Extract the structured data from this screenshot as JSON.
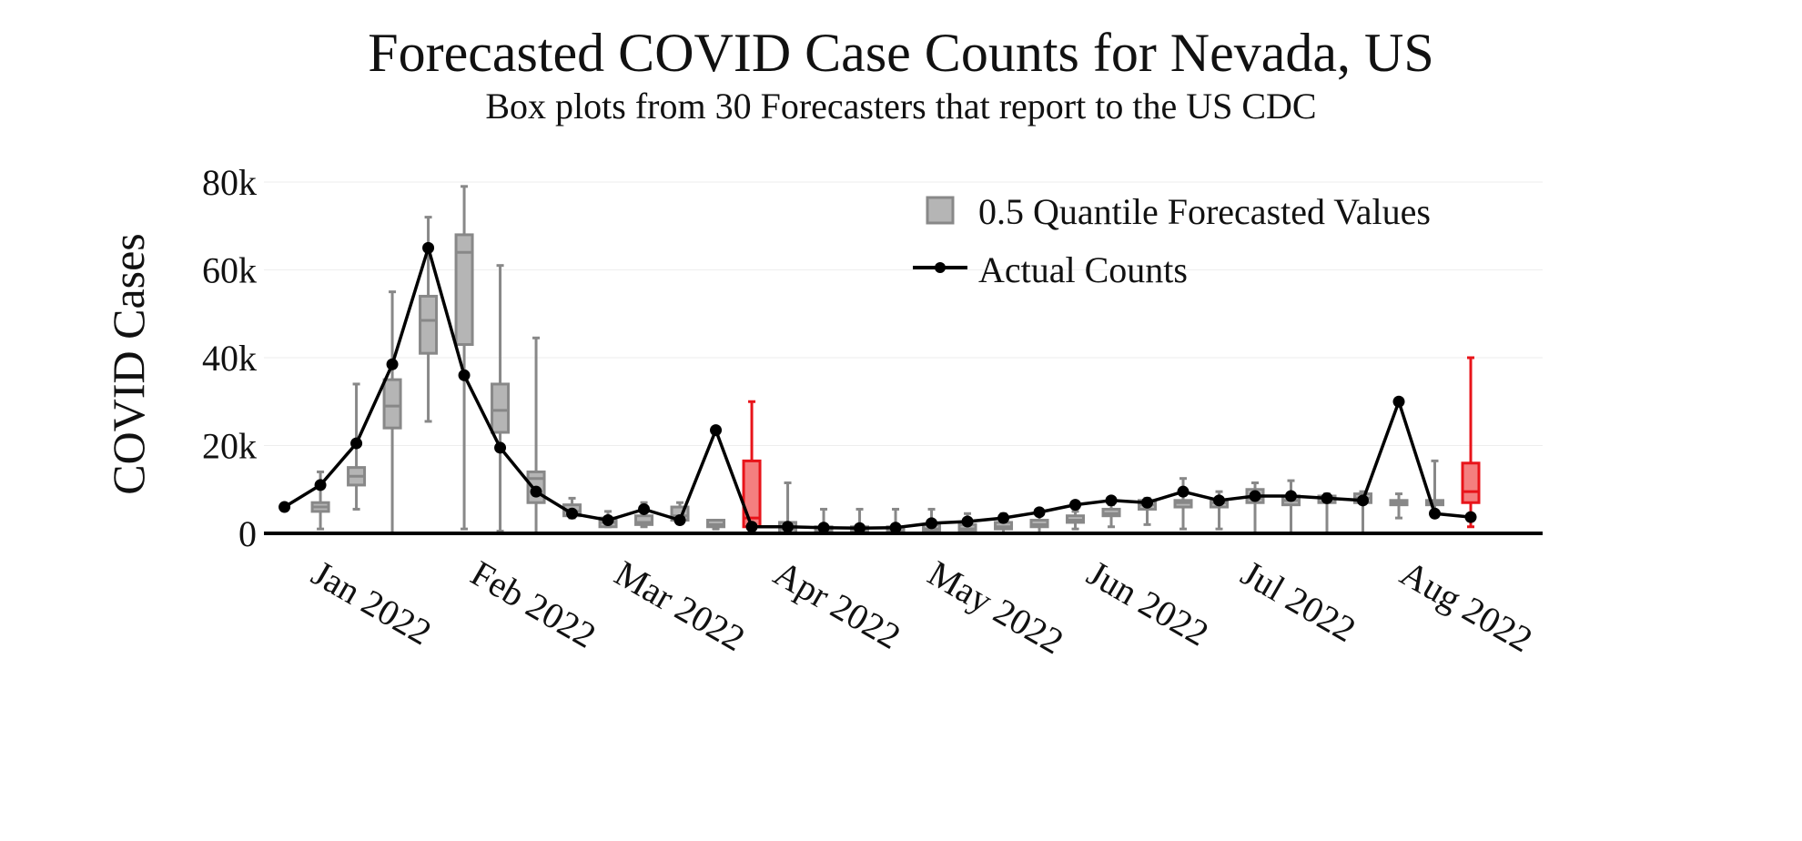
{
  "chart_data": {
    "type": "box",
    "title": "Forecasted COVID Case Counts for Nevada, US",
    "subtitle": "Box plots from 30 Forecasters that report to the US CDC",
    "ylabel": "COVID Cases",
    "xlabel": "",
    "ylim": [
      0,
      80000
    ],
    "y_ticks": [
      0,
      20000,
      40000,
      60000,
      80000
    ],
    "y_tick_labels": [
      "0",
      "20k",
      "40k",
      "60k",
      "80k"
    ],
    "x_range": [
      "2021-12-14",
      "2022-08-20"
    ],
    "x_ticks": [
      "2022-01-01",
      "2022-02-01",
      "2022-03-01",
      "2022-04-01",
      "2022-05-01",
      "2022-06-01",
      "2022-07-01",
      "2022-08-01"
    ],
    "x_tick_labels": [
      "Jan 2022",
      "Feb 2022",
      "Mar 2022",
      "Apr 2022",
      "May 2022",
      "Jun 2022",
      "Jul 2022",
      "Aug 2022"
    ],
    "legend": {
      "placement": "top-right",
      "entries": [
        "0.5 Quantile Forecasted Values",
        "Actual Counts"
      ]
    },
    "colors": {
      "box_fill": "#b5b5b5",
      "box_stroke": "#888888",
      "box_highlight_fill": "#f47f7f",
      "box_highlight_stroke": "#e8141a",
      "actual_line": "#000000",
      "axis": "#000000",
      "grid": "#eeeeee"
    },
    "grid": true,
    "box_series": {
      "name": "0.5 Quantile Forecasted Values",
      "boxes": [
        {
          "date": "2021-12-25",
          "min": 1000,
          "q1": 5000,
          "median": 6000,
          "q3": 7000,
          "max": 14000
        },
        {
          "date": "2022-01-01",
          "min": 5500,
          "q1": 11000,
          "median": 13000,
          "q3": 15000,
          "max": 34000
        },
        {
          "date": "2022-01-08",
          "min": 0,
          "q1": 24000,
          "median": 29000,
          "q3": 35000,
          "max": 55000
        },
        {
          "date": "2022-01-15",
          "min": 25500,
          "q1": 41000,
          "median": 48500,
          "q3": 54000,
          "max": 72000
        },
        {
          "date": "2022-01-22",
          "min": 1000,
          "q1": 43000,
          "median": 64000,
          "q3": 68000,
          "max": 79000
        },
        {
          "date": "2022-01-29",
          "min": 500,
          "q1": 23000,
          "median": 28000,
          "q3": 34000,
          "max": 61000
        },
        {
          "date": "2022-02-05",
          "min": 0,
          "q1": 7000,
          "median": 12500,
          "q3": 14000,
          "max": 44500
        },
        {
          "date": "2022-02-12",
          "min": 3500,
          "q1": 4000,
          "median": 5000,
          "q3": 6500,
          "max": 8000
        },
        {
          "date": "2022-02-19",
          "min": 1500,
          "q1": 1500,
          "median": 2500,
          "q3": 3500,
          "max": 5000
        },
        {
          "date": "2022-02-26",
          "min": 1500,
          "q1": 2000,
          "median": 2500,
          "q3": 4000,
          "max": 7000
        },
        {
          "date": "2022-03-05",
          "min": 2500,
          "q1": 3000,
          "median": 4000,
          "q3": 6000,
          "max": 7000
        },
        {
          "date": "2022-03-12",
          "min": 1000,
          "q1": 1500,
          "median": 2000,
          "q3": 3000,
          "max": 3000
        },
        {
          "date": "2022-03-19",
          "min": 0,
          "q1": 1500,
          "median": 3500,
          "q3": 16500,
          "max": 30000,
          "highlight": true
        },
        {
          "date": "2022-03-26",
          "min": 0,
          "q1": 0,
          "median": 1000,
          "q3": 2500,
          "max": 11500
        },
        {
          "date": "2022-04-02",
          "min": 0,
          "q1": 0,
          "median": 500,
          "q3": 1500,
          "max": 5500
        },
        {
          "date": "2022-04-09",
          "min": 0,
          "q1": 0,
          "median": 500,
          "q3": 1500,
          "max": 5500
        },
        {
          "date": "2022-04-16",
          "min": 0,
          "q1": 0,
          "median": 500,
          "q3": 1500,
          "max": 5500
        },
        {
          "date": "2022-04-23",
          "min": 0,
          "q1": 500,
          "median": 1000,
          "q3": 2000,
          "max": 5500
        },
        {
          "date": "2022-04-30",
          "min": 0,
          "q1": 500,
          "median": 1000,
          "q3": 2000,
          "max": 4500
        },
        {
          "date": "2022-05-07",
          "min": 0,
          "q1": 1000,
          "median": 1500,
          "q3": 2500,
          "max": 4500
        },
        {
          "date": "2022-05-14",
          "min": 0,
          "q1": 1500,
          "median": 2000,
          "q3": 3000,
          "max": 4500
        },
        {
          "date": "2022-05-21",
          "min": 1000,
          "q1": 2500,
          "median": 3000,
          "q3": 4000,
          "max": 5000
        },
        {
          "date": "2022-05-28",
          "min": 1500,
          "q1": 4000,
          "median": 4500,
          "q3": 5500,
          "max": 6500
        },
        {
          "date": "2022-06-04",
          "min": 2000,
          "q1": 5500,
          "median": 6500,
          "q3": 7500,
          "max": 8000
        },
        {
          "date": "2022-06-11",
          "min": 1000,
          "q1": 6000,
          "median": 7000,
          "q3": 7500,
          "max": 12500
        },
        {
          "date": "2022-06-18",
          "min": 1000,
          "q1": 6000,
          "median": 7000,
          "q3": 7500,
          "max": 9500
        },
        {
          "date": "2022-06-25",
          "min": 0,
          "q1": 7000,
          "median": 8000,
          "q3": 10000,
          "max": 11500
        },
        {
          "date": "2022-07-02",
          "min": 0,
          "q1": 6500,
          "median": 7500,
          "q3": 8500,
          "max": 12000
        },
        {
          "date": "2022-07-09",
          "min": 0,
          "q1": 7000,
          "median": 8000,
          "q3": 8500,
          "max": 9000
        },
        {
          "date": "2022-07-16",
          "min": 0,
          "q1": 7000,
          "median": 8000,
          "q3": 9000,
          "max": 9500
        },
        {
          "date": "2022-07-23",
          "min": 3500,
          "q1": 6500,
          "median": 7000,
          "q3": 7500,
          "max": 9000
        },
        {
          "date": "2022-07-30",
          "min": 4500,
          "q1": 6500,
          "median": 7000,
          "q3": 7500,
          "max": 16500
        },
        {
          "date": "2022-08-06",
          "min": 1500,
          "q1": 7000,
          "median": 9500,
          "q3": 16000,
          "max": 40000,
          "highlight": true
        }
      ]
    },
    "line_series": {
      "name": "Actual Counts",
      "points": [
        {
          "x": "2021-12-18",
          "y": 6000
        },
        {
          "x": "2021-12-25",
          "y": 11000
        },
        {
          "x": "2022-01-01",
          "y": 20500
        },
        {
          "x": "2022-01-08",
          "y": 38500
        },
        {
          "x": "2022-01-15",
          "y": 65000
        },
        {
          "x": "2022-01-22",
          "y": 36000
        },
        {
          "x": "2022-01-29",
          "y": 19500
        },
        {
          "x": "2022-02-05",
          "y": 9500
        },
        {
          "x": "2022-02-12",
          "y": 4500
        },
        {
          "x": "2022-02-19",
          "y": 3000
        },
        {
          "x": "2022-02-26",
          "y": 5500
        },
        {
          "x": "2022-03-05",
          "y": 3000
        },
        {
          "x": "2022-03-12",
          "y": 23500
        },
        {
          "x": "2022-03-19",
          "y": 1500
        },
        {
          "x": "2022-03-26",
          "y": 1500
        },
        {
          "x": "2022-04-02",
          "y": 1300
        },
        {
          "x": "2022-04-09",
          "y": 1200
        },
        {
          "x": "2022-04-16",
          "y": 1300
        },
        {
          "x": "2022-04-23",
          "y": 2300
        },
        {
          "x": "2022-04-30",
          "y": 2700
        },
        {
          "x": "2022-05-07",
          "y": 3500
        },
        {
          "x": "2022-05-14",
          "y": 4800
        },
        {
          "x": "2022-05-21",
          "y": 6500
        },
        {
          "x": "2022-05-28",
          "y": 7500
        },
        {
          "x": "2022-06-04",
          "y": 7000
        },
        {
          "x": "2022-06-11",
          "y": 9500
        },
        {
          "x": "2022-06-18",
          "y": 7500
        },
        {
          "x": "2022-06-25",
          "y": 8500
        },
        {
          "x": "2022-07-02",
          "y": 8500
        },
        {
          "x": "2022-07-09",
          "y": 8000
        },
        {
          "x": "2022-07-16",
          "y": 7500
        },
        {
          "x": "2022-07-23",
          "y": 30000
        },
        {
          "x": "2022-07-30",
          "y": 4500
        },
        {
          "x": "2022-08-06",
          "y": 3700
        }
      ]
    }
  }
}
